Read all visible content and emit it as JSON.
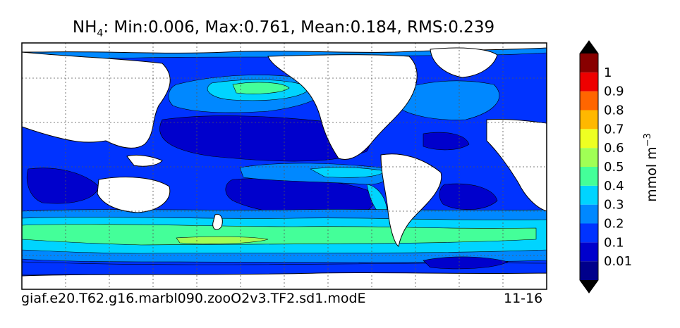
{
  "title": {
    "variable": "NH",
    "subscript": "4",
    "stats": ": Min:0.006, Max:0.761, Mean:0.184, RMS:0.239"
  },
  "footer": {
    "case_name": "giaf.e20.T62.g16.marbl090.zooO2v3.TF2.sd1.modE",
    "years": "11-16"
  },
  "colorbar": {
    "unit_text": "mmol m",
    "unit_exp": "−3",
    "levels": [
      {
        "label": "0.01",
        "color": "#0000cc"
      },
      {
        "label": "0.1",
        "color": "#0033ff"
      },
      {
        "label": "0.2",
        "color": "#0088ff"
      },
      {
        "label": "0.3",
        "color": "#00d4ff"
      },
      {
        "label": "0.4",
        "color": "#44ff99"
      },
      {
        "label": "0.5",
        "color": "#a0ff55"
      },
      {
        "label": "0.6",
        "color": "#eeff22"
      },
      {
        "label": "0.7",
        "color": "#ffb800"
      },
      {
        "label": "0.8",
        "color": "#ff6600"
      },
      {
        "label": "0.9",
        "color": "#ee0000"
      },
      {
        "label": "1",
        "color": "#880000"
      }
    ],
    "under_color": "#000000",
    "over_color": "#000000",
    "bottom_color": "#00008b"
  },
  "chart_data": {
    "type": "heatmap",
    "variable": "NH4",
    "unit": "mmol m-3",
    "min": 0.006,
    "max": 0.761,
    "mean": 0.184,
    "rms": 0.239,
    "contour_levels": [
      0.01,
      0.1,
      0.2,
      0.3,
      0.4,
      0.5,
      0.6,
      0.7,
      0.8,
      0.9,
      1
    ],
    "projection": "global lat-lon, Pacific-centered",
    "grid": true,
    "colorbar_extend": "both"
  }
}
